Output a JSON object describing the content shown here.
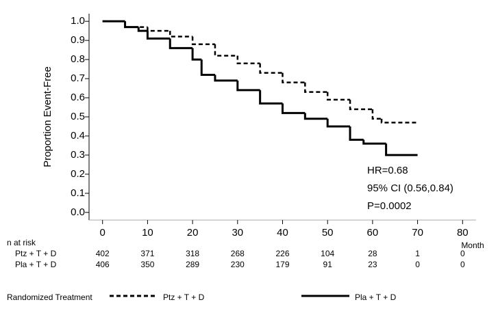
{
  "chart_data": {
    "type": "step",
    "y_label": "Proportion Event-Free",
    "x_unit": "Month",
    "xlim": [
      -3,
      83
    ],
    "xticks": [
      0,
      10,
      20,
      30,
      40,
      50,
      60,
      70,
      80
    ],
    "ylim": [
      -0.04,
      1.04
    ],
    "yticks": [
      {
        "value": 0,
        "label": "0.0"
      },
      0.1,
      0.2,
      0.3,
      0.4,
      0.5,
      0.6,
      0.7,
      0.8,
      0.9,
      {
        "value": 1,
        "label": "1.0"
      }
    ],
    "series": [
      {
        "name": "Ptz + T + D",
        "color": "#000000",
        "dashed": true,
        "x": [
          0,
          5,
          10,
          15,
          20,
          25,
          30,
          35,
          40,
          45,
          50,
          55,
          60,
          62,
          70
        ],
        "values": [
          1.0,
          0.97,
          0.95,
          0.92,
          0.88,
          0.82,
          0.78,
          0.73,
          0.68,
          0.63,
          0.59,
          0.54,
          0.49,
          0.47,
          0.47
        ]
      },
      {
        "name": "Pla + T + D",
        "color": "#000000",
        "dashed": false,
        "x": [
          0,
          5,
          8,
          10,
          15,
          20,
          22,
          25,
          30,
          35,
          40,
          45,
          50,
          55,
          58,
          63,
          70
        ],
        "values": [
          1.0,
          0.97,
          0.95,
          0.91,
          0.86,
          0.8,
          0.72,
          0.69,
          0.64,
          0.57,
          0.52,
          0.49,
          0.45,
          0.38,
          0.36,
          0.3,
          0.3
        ]
      }
    ],
    "annotations": [
      "HR=0.68",
      "95% CI (0.56,0.84)",
      "P=0.0002"
    ],
    "risk_table": {
      "title": "n at risk",
      "rows": [
        {
          "name": "Ptz + T + D",
          "values": [
            402,
            371,
            318,
            268,
            226,
            104,
            28,
            1,
            0
          ]
        },
        {
          "name": "Pla + T + D",
          "values": [
            406,
            350,
            289,
            230,
            179,
            91,
            23,
            0,
            0
          ]
        }
      ]
    },
    "legend_title": "Randomized Treatment"
  }
}
